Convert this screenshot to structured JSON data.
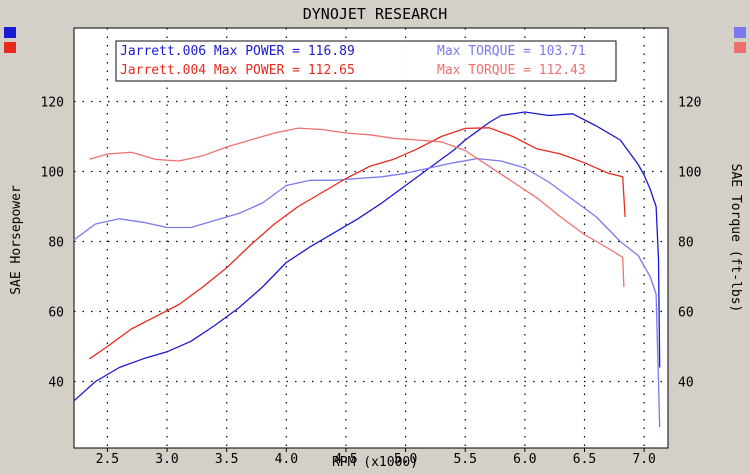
{
  "chart_data": {
    "type": "line",
    "title": "DYNOJET RESEARCH",
    "xlabel": "RPM (x1000)",
    "ylabel_left": "SAE Horsepower",
    "ylabel_right": "SAE Torque (ft-lbs)",
    "xlim": [
      2.22,
      7.2
    ],
    "ylim": [
      21,
      141
    ],
    "x_ticks": [
      "2.5",
      "3.0",
      "3.5",
      "4.0",
      "4.5",
      "5.0",
      "5.5",
      "6.0",
      "6.5",
      "7.0"
    ],
    "y_ticks": [
      "40",
      "60",
      "80",
      "100",
      "120"
    ],
    "grid": true,
    "colors": {
      "background": "#d4d0c8",
      "plot": "#ffffff",
      "blue_dark": "#1a1ad0",
      "blue_light": "#7a7aee",
      "red_dark": "#e62a1e",
      "red_light": "#f07070"
    },
    "legend": [
      {
        "text": "Jarrett.006 Max POWER = 116.89",
        "color": "#1a1ad0"
      },
      {
        "text": "Max TORQUE = 103.71",
        "color": "#7a7aee"
      },
      {
        "text": "Jarrett.004 Max POWER = 112.65",
        "color": "#e62a1e"
      },
      {
        "text": "Max TORQUE = 112.43",
        "color": "#f07070"
      }
    ],
    "series": [
      {
        "run": "Jarrett.006",
        "measure": "power",
        "color": "#1a1ad0",
        "points": [
          [
            2.22,
            34.5
          ],
          [
            2.4,
            40
          ],
          [
            2.6,
            44
          ],
          [
            2.8,
            46.5
          ],
          [
            3.0,
            48.5
          ],
          [
            3.2,
            51.5
          ],
          [
            3.4,
            56
          ],
          [
            3.6,
            61
          ],
          [
            3.8,
            67
          ],
          [
            4.0,
            74
          ],
          [
            4.2,
            78.5
          ],
          [
            4.4,
            82.5
          ],
          [
            4.6,
            86.5
          ],
          [
            4.8,
            91
          ],
          [
            5.0,
            96
          ],
          [
            5.2,
            101
          ],
          [
            5.4,
            106
          ],
          [
            5.5,
            109
          ],
          [
            5.6,
            111.5
          ],
          [
            5.7,
            114
          ],
          [
            5.8,
            116
          ],
          [
            6.0,
            117
          ],
          [
            6.2,
            116
          ],
          [
            6.4,
            116.5
          ],
          [
            6.6,
            113
          ],
          [
            6.8,
            109
          ],
          [
            6.95,
            102
          ],
          [
            7.0,
            99
          ],
          [
            7.05,
            95
          ],
          [
            7.1,
            90
          ],
          [
            7.12,
            75
          ],
          [
            7.13,
            44
          ]
        ]
      },
      {
        "run": "Jarrett.006",
        "measure": "torque",
        "color": "#7a7aee",
        "points": [
          [
            2.22,
            80.5
          ],
          [
            2.4,
            85
          ],
          [
            2.6,
            86.5
          ],
          [
            2.8,
            85.5
          ],
          [
            3.0,
            84
          ],
          [
            3.2,
            84
          ],
          [
            3.4,
            86
          ],
          [
            3.6,
            88
          ],
          [
            3.8,
            91
          ],
          [
            4.0,
            96
          ],
          [
            4.2,
            97.5
          ],
          [
            4.4,
            97.5
          ],
          [
            4.6,
            98
          ],
          [
            4.8,
            98.5
          ],
          [
            5.0,
            99.5
          ],
          [
            5.2,
            101
          ],
          [
            5.4,
            102.5
          ],
          [
            5.6,
            103.7
          ],
          [
            5.8,
            103
          ],
          [
            6.0,
            101
          ],
          [
            6.2,
            97
          ],
          [
            6.4,
            92
          ],
          [
            6.6,
            87
          ],
          [
            6.8,
            80
          ],
          [
            6.95,
            76
          ],
          [
            7.0,
            73
          ],
          [
            7.05,
            70
          ],
          [
            7.1,
            65
          ],
          [
            7.13,
            27
          ]
        ]
      },
      {
        "run": "Jarrett.004",
        "measure": "power",
        "color": "#e62a1e",
        "points": [
          [
            2.35,
            46.5
          ],
          [
            2.5,
            50
          ],
          [
            2.7,
            55
          ],
          [
            2.9,
            58.5
          ],
          [
            3.1,
            62
          ],
          [
            3.3,
            67
          ],
          [
            3.5,
            72.5
          ],
          [
            3.7,
            79
          ],
          [
            3.9,
            85
          ],
          [
            4.1,
            90
          ],
          [
            4.3,
            94
          ],
          [
            4.5,
            98
          ],
          [
            4.7,
            101.5
          ],
          [
            4.9,
            103.5
          ],
          [
            5.1,
            106.5
          ],
          [
            5.3,
            110
          ],
          [
            5.5,
            112.3
          ],
          [
            5.7,
            112.5
          ],
          [
            5.9,
            110
          ],
          [
            6.1,
            106.5
          ],
          [
            6.3,
            105
          ],
          [
            6.5,
            102.5
          ],
          [
            6.7,
            99.5
          ],
          [
            6.82,
            98.5
          ],
          [
            6.84,
            87
          ]
        ]
      },
      {
        "run": "Jarrett.004",
        "measure": "torque",
        "color": "#f07070",
        "points": [
          [
            2.35,
            103.5
          ],
          [
            2.5,
            105
          ],
          [
            2.7,
            105.5
          ],
          [
            2.9,
            103.5
          ],
          [
            3.1,
            103
          ],
          [
            3.3,
            104.5
          ],
          [
            3.5,
            107
          ],
          [
            3.7,
            109
          ],
          [
            3.9,
            111
          ],
          [
            4.1,
            112.4
          ],
          [
            4.3,
            112
          ],
          [
            4.5,
            111
          ],
          [
            4.7,
            110.5
          ],
          [
            4.9,
            109.5
          ],
          [
            5.1,
            109
          ],
          [
            5.3,
            108.5
          ],
          [
            5.5,
            106
          ],
          [
            5.7,
            101.5
          ],
          [
            5.9,
            97
          ],
          [
            6.1,
            92.5
          ],
          [
            6.3,
            87
          ],
          [
            6.5,
            82
          ],
          [
            6.7,
            78
          ],
          [
            6.82,
            75.5
          ],
          [
            6.83,
            67
          ]
        ]
      }
    ]
  }
}
